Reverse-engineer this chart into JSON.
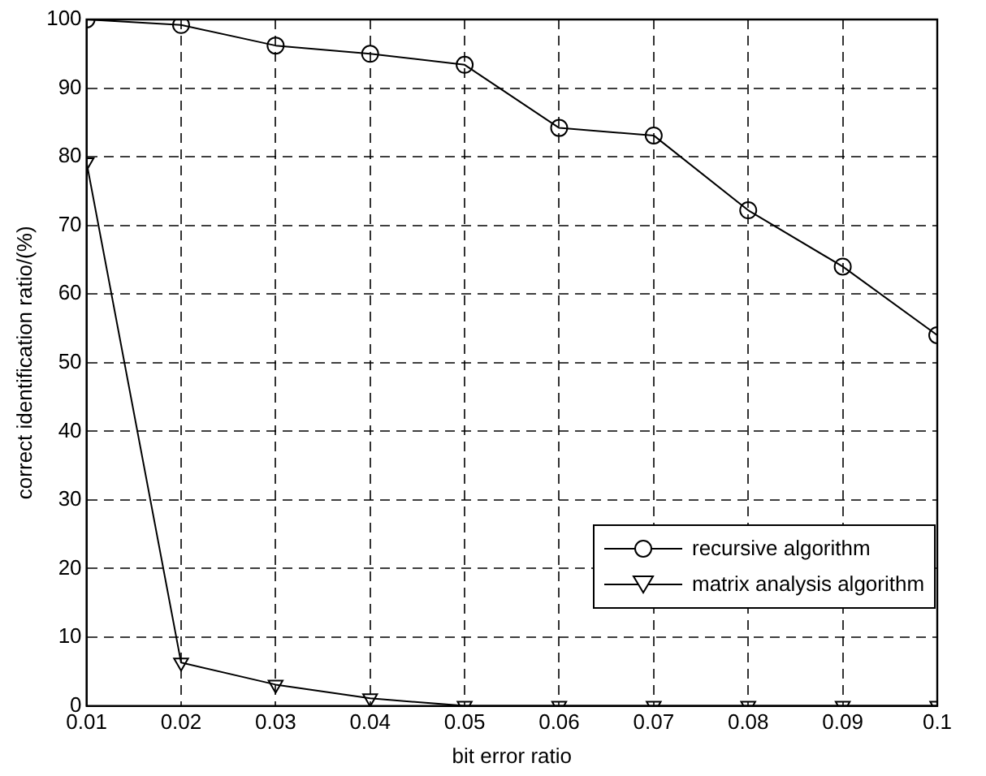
{
  "chart_data": {
    "type": "line",
    "xlabel": "bit error ratio",
    "ylabel": "correct identification ratio/(%)",
    "x": [
      0.01,
      0.02,
      0.03,
      0.04,
      0.05,
      0.06,
      0.07,
      0.08,
      0.09,
      0.1
    ],
    "series": [
      {
        "name": "recursive algorithm",
        "color": "#000000",
        "marker": "circle",
        "values": [
          100,
          99.2,
          96.2,
          95,
          93.4,
          84.2,
          83.1,
          72.2,
          64,
          54
        ]
      },
      {
        "name": "matrix analysis algorithm",
        "color": "#000000",
        "marker": "triangle",
        "values": [
          79.2,
          6.3,
          3.1,
          1.1,
          0,
          0,
          0,
          0,
          0,
          0
        ]
      }
    ],
    "xlim": [
      0.01,
      0.1
    ],
    "xticks": [
      0.01,
      0.02,
      0.03,
      0.04,
      0.05,
      0.06,
      0.07,
      0.08,
      0.09,
      0.1
    ],
    "ylim": [
      0,
      100
    ],
    "yticks": [
      0,
      10,
      20,
      30,
      40,
      50,
      60,
      70,
      80,
      90,
      100
    ],
    "grid": true,
    "legend": "bottom right",
    "line_style": "solid"
  }
}
